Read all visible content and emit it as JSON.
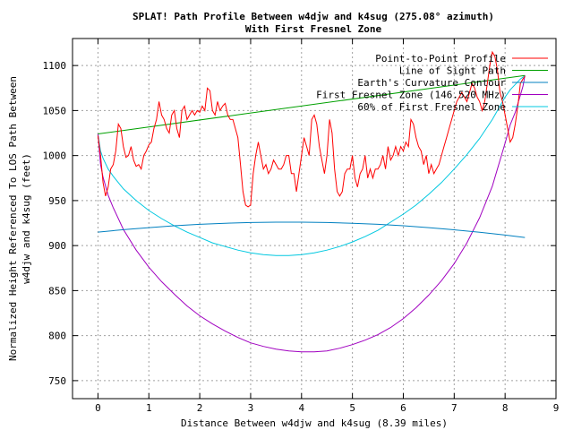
{
  "chart_data": {
    "type": "line",
    "title": "SPLAT! Path Profile Between w4djw and k4sug (275.08° azimuth)",
    "subtitle": "With First Fresnel Zone",
    "xlabel": "Distance Between w4djw and k4sug (8.39 miles)",
    "ylabel_line1": "Normalized Height Referenced To LOS Path Between",
    "ylabel_line2": "w4djw and k4sug (feet)",
    "xlim": [
      -0.5,
      9
    ],
    "ylim": [
      730,
      1130
    ],
    "xticks": [
      0,
      1,
      2,
      3,
      4,
      5,
      6,
      7,
      8,
      9
    ],
    "yticks": [
      750,
      800,
      850,
      900,
      950,
      1000,
      1050,
      1100
    ],
    "grid": true,
    "legend_position": "top-right",
    "series": [
      {
        "name": "Point-to-Point Profile",
        "color": "#ff0000",
        "x": [
          0.0,
          0.05,
          0.1,
          0.15,
          0.2,
          0.25,
          0.3,
          0.35,
          0.4,
          0.45,
          0.5,
          0.55,
          0.6,
          0.65,
          0.7,
          0.75,
          0.8,
          0.85,
          0.9,
          0.95,
          1.0,
          1.05,
          1.1,
          1.15,
          1.2,
          1.25,
          1.3,
          1.35,
          1.4,
          1.45,
          1.5,
          1.55,
          1.6,
          1.65,
          1.7,
          1.75,
          1.8,
          1.85,
          1.9,
          1.95,
          2.0,
          2.05,
          2.1,
          2.15,
          2.2,
          2.25,
          2.3,
          2.35,
          2.4,
          2.45,
          2.5,
          2.55,
          2.6,
          2.65,
          2.7,
          2.75,
          2.8,
          2.85,
          2.9,
          2.95,
          3.0,
          3.05,
          3.1,
          3.15,
          3.2,
          3.25,
          3.3,
          3.35,
          3.4,
          3.45,
          3.5,
          3.55,
          3.6,
          3.65,
          3.7,
          3.75,
          3.8,
          3.85,
          3.9,
          3.95,
          4.0,
          4.05,
          4.1,
          4.15,
          4.2,
          4.25,
          4.3,
          4.35,
          4.4,
          4.45,
          4.5,
          4.55,
          4.6,
          4.65,
          4.7,
          4.75,
          4.8,
          4.85,
          4.9,
          4.95,
          5.0,
          5.05,
          5.1,
          5.15,
          5.2,
          5.25,
          5.3,
          5.35,
          5.4,
          5.45,
          5.5,
          5.55,
          5.6,
          5.65,
          5.7,
          5.75,
          5.8,
          5.85,
          5.9,
          5.95,
          6.0,
          6.05,
          6.1,
          6.15,
          6.2,
          6.25,
          6.3,
          6.35,
          6.4,
          6.45,
          6.5,
          6.55,
          6.6,
          6.65,
          6.7,
          6.75,
          6.8,
          6.85,
          6.9,
          6.95,
          7.0,
          7.05,
          7.1,
          7.15,
          7.2,
          7.25,
          7.3,
          7.35,
          7.4,
          7.45,
          7.5,
          7.55,
          7.6,
          7.65,
          7.7,
          7.75,
          7.8,
          7.85,
          7.9,
          7.95,
          8.0,
          8.05,
          8.1,
          8.15,
          8.2,
          8.25,
          8.3,
          8.35,
          8.39
        ],
        "y": [
          1022,
          1000,
          970,
          955,
          965,
          985,
          990,
          1005,
          1035,
          1030,
          1010,
          998,
          1000,
          1010,
          995,
          988,
          990,
          985,
          1000,
          1005,
          1012,
          1015,
          1030,
          1040,
          1060,
          1045,
          1040,
          1030,
          1025,
          1045,
          1050,
          1030,
          1020,
          1050,
          1055,
          1040,
          1045,
          1050,
          1045,
          1050,
          1048,
          1055,
          1050,
          1075,
          1072,
          1050,
          1045,
          1060,
          1050,
          1055,
          1058,
          1045,
          1040,
          1040,
          1030,
          1020,
          990,
          960,
          945,
          943,
          945,
          980,
          1000,
          1015,
          1000,
          985,
          990,
          980,
          985,
          995,
          990,
          985,
          985,
          990,
          1000,
          1000,
          980,
          980,
          960,
          980,
          1000,
          1020,
          1010,
          1000,
          1040,
          1045,
          1035,
          1010,
          995,
          980,
          1000,
          1040,
          1025,
          985,
          960,
          955,
          960,
          980,
          985,
          985,
          1000,
          975,
          965,
          980,
          985,
          1000,
          975,
          985,
          975,
          985,
          985,
          990,
          1000,
          985,
          1010,
          995,
          1000,
          1010,
          1000,
          1010,
          1005,
          1015,
          1010,
          1040,
          1035,
          1020,
          1010,
          1005,
          990,
          1000,
          980,
          990,
          980,
          985,
          990,
          1000,
          1010,
          1020,
          1030,
          1040,
          1050,
          1060,
          1065,
          1070,
          1065,
          1060,
          1070,
          1080,
          1075,
          1065,
          1060,
          1050,
          1060,
          1080,
          1100,
          1115,
          1110,
          1095,
          1070,
          1060,
          1045,
          1030,
          1015,
          1020,
          1035,
          1055,
          1080,
          1085,
          1088
        ]
      },
      {
        "name": "Line of Sight Path",
        "color": "#00a000",
        "x": [
          0.0,
          8.39
        ],
        "y": [
          1024,
          1089
        ]
      },
      {
        "name": "Earth's Curvature Contour",
        "color": "#0080c0",
        "x": [
          0.0,
          0.5,
          1.0,
          1.5,
          2.0,
          2.5,
          3.0,
          3.5,
          4.0,
          4.5,
          5.0,
          5.5,
          6.0,
          6.5,
          7.0,
          7.5,
          8.0,
          8.39
        ],
        "y": [
          915.0,
          917.7,
          920.0,
          922.0,
          923.6,
          924.8,
          925.6,
          926.0,
          926.0,
          925.6,
          924.8,
          923.6,
          922.0,
          920.0,
          917.6,
          914.8,
          911.7,
          909.0
        ]
      },
      {
        "name": "First Fresnel Zone (146.520 MHz)",
        "color": "#a000c0",
        "x": [
          0.0,
          0.05,
          0.1,
          0.2,
          0.3,
          0.5,
          0.75,
          1.0,
          1.25,
          1.5,
          1.75,
          2.0,
          2.25,
          2.5,
          2.75,
          3.0,
          3.25,
          3.5,
          3.75,
          4.0,
          4.25,
          4.5,
          4.75,
          5.0,
          5.25,
          5.5,
          5.75,
          6.0,
          6.25,
          6.5,
          6.75,
          7.0,
          7.25,
          7.5,
          7.75,
          8.0,
          8.1,
          8.2,
          8.3,
          8.35,
          8.39
        ],
        "y": [
          1024,
          990,
          976,
          956,
          942,
          918,
          895,
          876,
          860,
          846,
          833,
          822,
          813,
          805,
          798,
          792,
          788,
          785,
          783,
          782,
          782,
          783,
          786,
          790,
          795,
          801,
          809,
          819,
          831,
          845,
          861,
          880,
          903,
          931,
          966,
          1014,
          1034,
          1048,
          1067,
          1077,
          1089
        ]
      },
      {
        "name": "60% of First Fresnel Zone",
        "color": "#00c8e0",
        "x": [
          0.0,
          0.05,
          0.1,
          0.2,
          0.3,
          0.5,
          0.75,
          1.0,
          1.25,
          1.5,
          1.75,
          2.0,
          2.25,
          2.5,
          2.75,
          3.0,
          3.25,
          3.5,
          3.75,
          4.0,
          4.25,
          4.5,
          4.75,
          5.0,
          5.25,
          5.5,
          5.75,
          6.0,
          6.25,
          6.5,
          6.75,
          7.0,
          7.25,
          7.5,
          7.75,
          8.0,
          8.1,
          8.2,
          8.3,
          8.35,
          8.39
        ],
        "y": [
          1024,
          1005,
          997,
          985,
          977,
          963,
          950,
          939,
          930,
          922,
          915,
          909,
          903,
          899,
          895,
          892,
          890,
          889,
          889,
          890,
          892,
          895,
          899,
          904,
          910,
          917,
          926,
          935,
          945,
          957,
          970,
          985,
          1001,
          1019,
          1040,
          1065,
          1073,
          1079,
          1085,
          1087,
          1089
        ]
      }
    ]
  }
}
